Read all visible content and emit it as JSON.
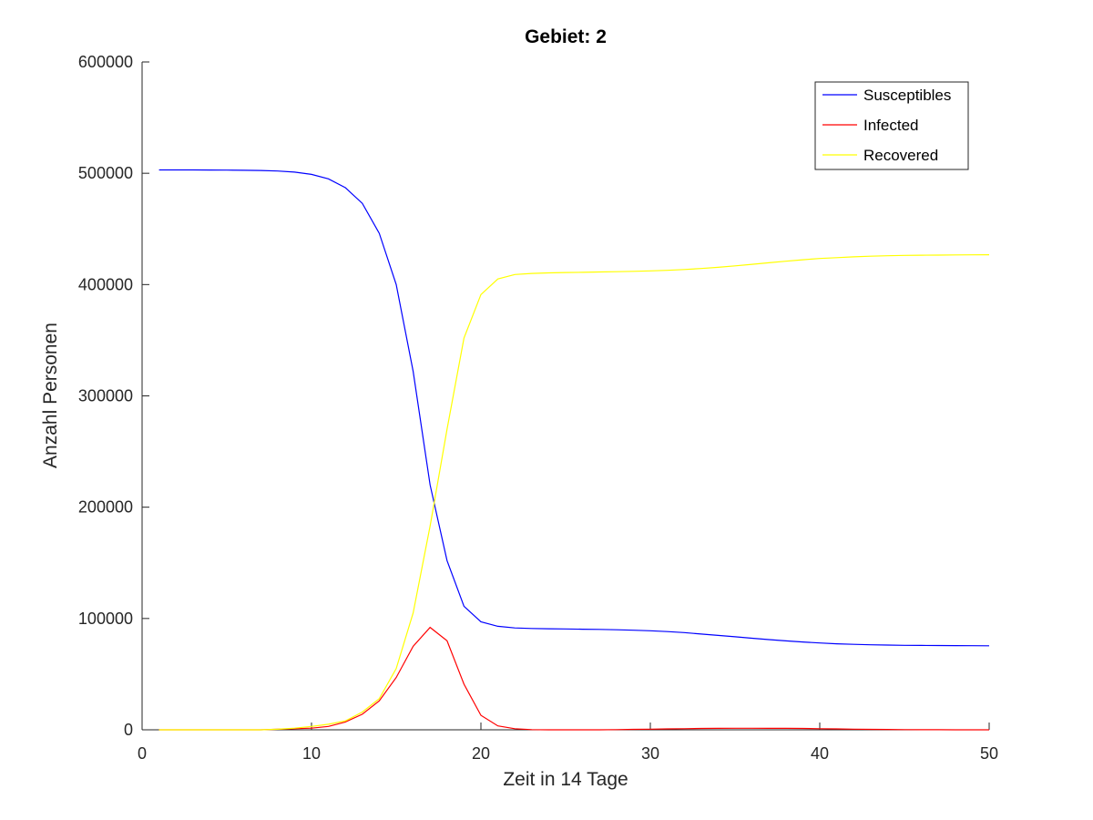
{
  "chart_data": {
    "type": "line",
    "title": "Gebiet: 2",
    "xlabel": "Zeit in 14 Tage",
    "ylabel": "Anzahl Personen",
    "xlim": [
      0,
      50
    ],
    "ylim": [
      0,
      600000
    ],
    "xticks": [
      "0",
      "10",
      "20",
      "30",
      "40",
      "50"
    ],
    "yticks": [
      "0",
      "100000",
      "200000",
      "300000",
      "400000",
      "500000",
      "600000"
    ],
    "grid": false,
    "legend_position": "top-right",
    "x": [
      1,
      2,
      3,
      4,
      5,
      6,
      7,
      8,
      9,
      10,
      11,
      12,
      13,
      14,
      15,
      16,
      17,
      18,
      19,
      20,
      21,
      22,
      23,
      24,
      25,
      26,
      27,
      28,
      29,
      30,
      31,
      32,
      33,
      34,
      35,
      36,
      37,
      38,
      39,
      40,
      41,
      42,
      43,
      44,
      45,
      46,
      47,
      48,
      49,
      50
    ],
    "series": [
      {
        "name": "Susceptibles",
        "color": "#0000ff",
        "values": [
          503000,
          503000,
          503000,
          502900,
          502800,
          502700,
          502500,
          502000,
          501000,
          499000,
          495000,
          487000,
          473000,
          446000,
          400000,
          322000,
          220000,
          152000,
          111000,
          97000,
          93000,
          91500,
          91000,
          90800,
          90600,
          90400,
          90200,
          89900,
          89500,
          89000,
          88200,
          87300,
          86000,
          84800,
          83600,
          82300,
          81000,
          79900,
          78900,
          78000,
          77300,
          76800,
          76400,
          76100,
          75900,
          75800,
          75700,
          75600,
          75550,
          75500
        ],
        "points_drawn": 50
      },
      {
        "name": "Infected",
        "color": "#ff0000",
        "values": [
          0,
          0,
          0,
          0,
          0,
          0,
          0,
          500,
          1000,
          1500,
          3000,
          7000,
          14000,
          26000,
          47000,
          75000,
          92000,
          80000,
          41000,
          13000,
          3500,
          1000,
          200,
          0,
          0,
          0,
          0,
          200,
          400,
          600,
          800,
          1000,
          1200,
          1300,
          1400,
          1400,
          1350,
          1300,
          1200,
          1000,
          800,
          600,
          400,
          300,
          200,
          100,
          50,
          0,
          0,
          0
        ]
      },
      {
        "name": "Recovered",
        "color": "#ffff00",
        "values": [
          0,
          0,
          0,
          0,
          0,
          0,
          0,
          500,
          1500,
          3000,
          5000,
          8000,
          16000,
          28000,
          55000,
          105000,
          183000,
          270000,
          352000,
          391000,
          405000,
          409000,
          410000,
          410500,
          410800,
          411000,
          411300,
          411600,
          411900,
          412300,
          412800,
          413500,
          414400,
          415500,
          416800,
          418200,
          419600,
          421000,
          422300,
          423400,
          424200,
          424900,
          425500,
          425900,
          426200,
          426400,
          426500,
          426600,
          426700,
          426800
        ]
      }
    ]
  }
}
